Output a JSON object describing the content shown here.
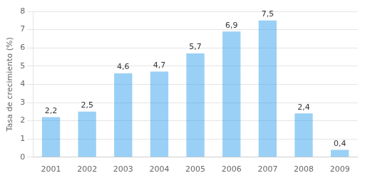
{
  "chart_data": {
    "type": "bar",
    "categories": [
      "2001",
      "2002",
      "2003",
      "2004",
      "2005",
      "2006",
      "2007",
      "2008",
      "2009"
    ],
    "values": [
      2.2,
      2.5,
      4.6,
      4.7,
      5.7,
      6.9,
      7.5,
      2.4,
      0.4
    ],
    "value_labels": [
      "2,2",
      "2,5",
      "4,6",
      "4,7",
      "5,7",
      "6,9",
      "7,5",
      "2,4",
      "0,4"
    ],
    "data_labels": true,
    "ylabel": "Tasa de crecimiento (%)",
    "ylim": [
      0,
      8
    ],
    "yticks": [
      0,
      1,
      2,
      3,
      4,
      5,
      6,
      7,
      8
    ],
    "grid": true
  }
}
